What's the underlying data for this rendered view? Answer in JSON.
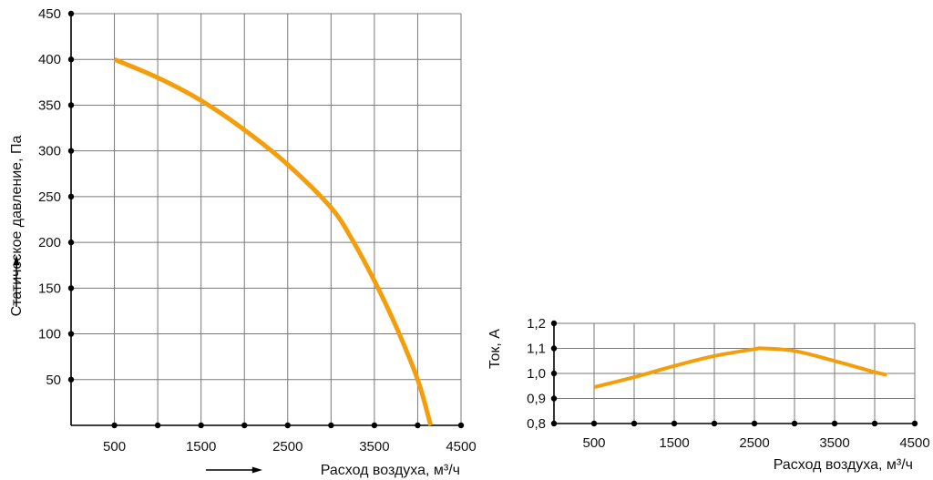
{
  "colors": {
    "curve": "#F59E0B",
    "grid": "#7a7a7a",
    "axis": "#000000",
    "text": "#111111"
  },
  "chart_data": [
    {
      "type": "line",
      "title": "",
      "xlabel": "Расход воздуха, м³/ч",
      "ylabel": "Статическое давление, Па",
      "xlim": [
        0,
        4500
      ],
      "ylim": [
        0,
        450
      ],
      "x_ticks": [
        500,
        1000,
        1500,
        2000,
        2500,
        3000,
        3500,
        4000,
        4500
      ],
      "x_tick_labels": [
        {
          "value": 500,
          "label": "500"
        },
        {
          "value": 1500,
          "label": "1500"
        },
        {
          "value": 2500,
          "label": "2500"
        },
        {
          "value": 3500,
          "label": "3500"
        },
        {
          "value": 4500,
          "label": "4500"
        }
      ],
      "y_tick_labels": [
        {
          "value": 50,
          "label": "50"
        },
        {
          "value": 100,
          "label": "100"
        },
        {
          "value": 150,
          "label": "150"
        },
        {
          "value": 200,
          "label": "200"
        },
        {
          "value": 250,
          "label": "250"
        },
        {
          "value": 300,
          "label": "300"
        },
        {
          "value": 350,
          "label": "350"
        },
        {
          "value": 400,
          "label": "400"
        },
        {
          "value": 450,
          "label": "450"
        }
      ],
      "grid": true,
      "series": [
        {
          "x": [
            500,
            1000,
            1500,
            2000,
            2500,
            3000,
            3250,
            3500,
            3750,
            4000,
            4150
          ],
          "y": [
            400,
            380,
            355,
            323,
            285,
            238,
            202,
            158,
            108,
            50,
            0
          ]
        }
      ]
    },
    {
      "type": "line",
      "title": "",
      "xlabel": "Расход воздуха, м³/ч",
      "ylabel": "Ток, А",
      "xlim": [
        0,
        4500
      ],
      "ylim": [
        0.8,
        1.2
      ],
      "x_ticks": [
        500,
        1000,
        1500,
        2000,
        2500,
        3000,
        3500,
        4000,
        4500
      ],
      "x_tick_labels": [
        {
          "value": 500,
          "label": "500"
        },
        {
          "value": 1500,
          "label": "1500"
        },
        {
          "value": 2500,
          "label": "2500"
        },
        {
          "value": 3500,
          "label": "3500"
        },
        {
          "value": 4500,
          "label": "4500"
        }
      ],
      "y_tick_labels": [
        {
          "value": 0.8,
          "label": "0,8"
        },
        {
          "value": 0.9,
          "label": "0,9"
        },
        {
          "value": 1.0,
          "label": "1,0"
        },
        {
          "value": 1.1,
          "label": "1,1"
        },
        {
          "value": 1.2,
          "label": "1,2"
        }
      ],
      "grid": true,
      "series": [
        {
          "x": [
            500,
            1000,
            1500,
            2000,
            2500,
            2600,
            3000,
            3500,
            4000,
            4150
          ],
          "y": [
            0.945,
            0.985,
            1.03,
            1.07,
            1.097,
            1.1,
            1.09,
            1.05,
            1.005,
            0.995
          ]
        }
      ]
    }
  ]
}
